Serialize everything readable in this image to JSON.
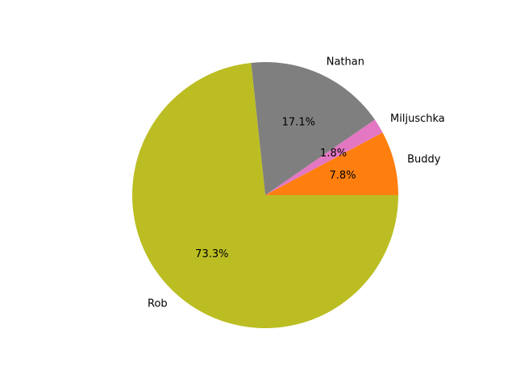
{
  "chart_data": {
    "type": "pie",
    "start_angle_deg": 0,
    "direction": "counterclockwise",
    "slices": [
      {
        "label": "Buddy",
        "value": 7.8,
        "pct_label": "7.8%",
        "color": "#ff7f0e"
      },
      {
        "label": "Miljuschka",
        "value": 1.8,
        "pct_label": "1.8%",
        "color": "#e377c2"
      },
      {
        "label": "Nathan",
        "value": 17.1,
        "pct_label": "17.1%",
        "color": "#7f7f7f"
      },
      {
        "label": "Rob",
        "value": 73.3,
        "pct_label": "73.3%",
        "color": "#bcbd22"
      }
    ]
  }
}
